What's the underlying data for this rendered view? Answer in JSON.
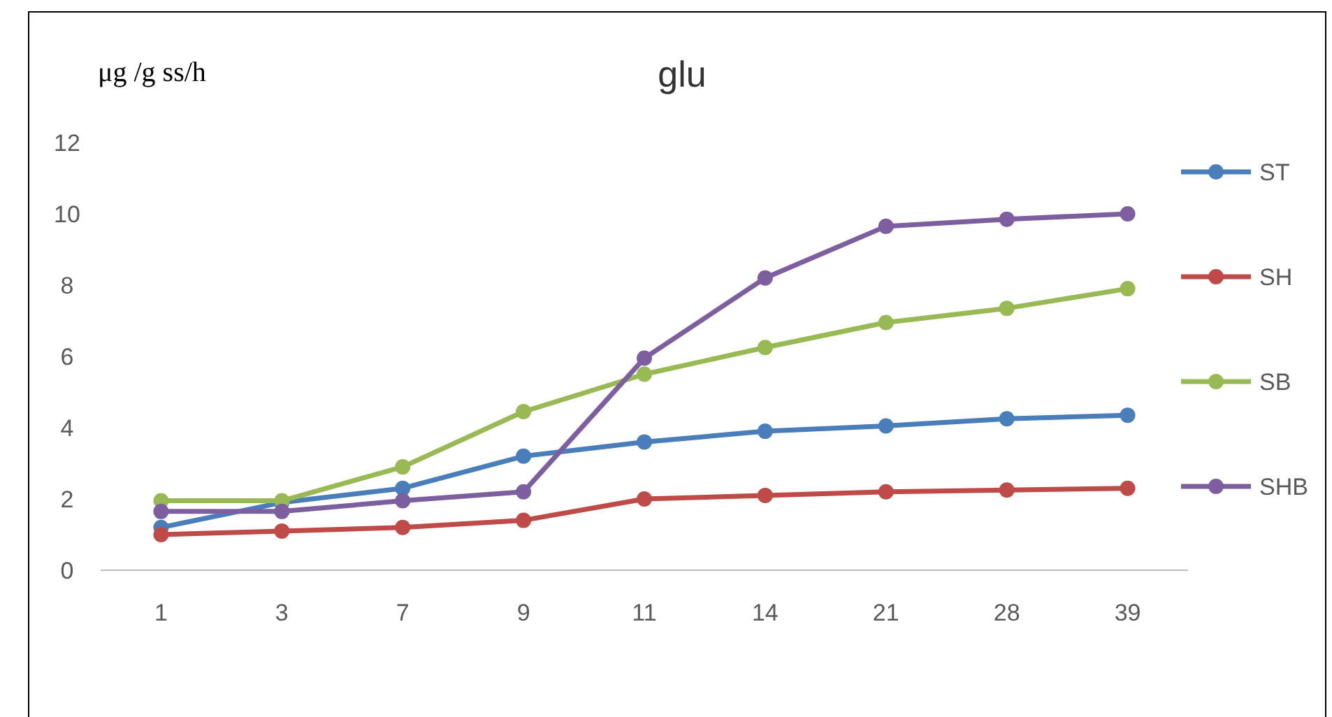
{
  "chart_data": {
    "type": "line",
    "title": "glu",
    "ylabel": "μg /g ss/h",
    "categories": [
      "1",
      "3",
      "7",
      "9",
      "11",
      "14",
      "21",
      "28",
      "39"
    ],
    "series": [
      {
        "name": "ST",
        "color": "#4a7ebb",
        "values": [
          1.2,
          1.9,
          2.3,
          3.2,
          3.6,
          3.9,
          4.05,
          4.25,
          4.35
        ]
      },
      {
        "name": "SH",
        "color": "#be4b48",
        "values": [
          1.0,
          1.1,
          1.2,
          1.4,
          2.0,
          2.1,
          2.2,
          2.25,
          2.3
        ]
      },
      {
        "name": "SB",
        "color": "#98b954",
        "values": [
          1.95,
          1.95,
          2.9,
          4.45,
          5.5,
          6.25,
          6.95,
          7.35,
          7.9
        ]
      },
      {
        "name": "SHB",
        "color": "#7d5fa0",
        "values": [
          1.65,
          1.65,
          1.95,
          2.2,
          5.95,
          8.2,
          9.65,
          9.85,
          10.0
        ]
      }
    ],
    "ylim": [
      0,
      12
    ],
    "yticks": [
      0,
      2,
      4,
      6,
      8,
      10,
      12
    ],
    "grid": false,
    "legend": "right",
    "marker": "circle",
    "line_style": "solid"
  }
}
